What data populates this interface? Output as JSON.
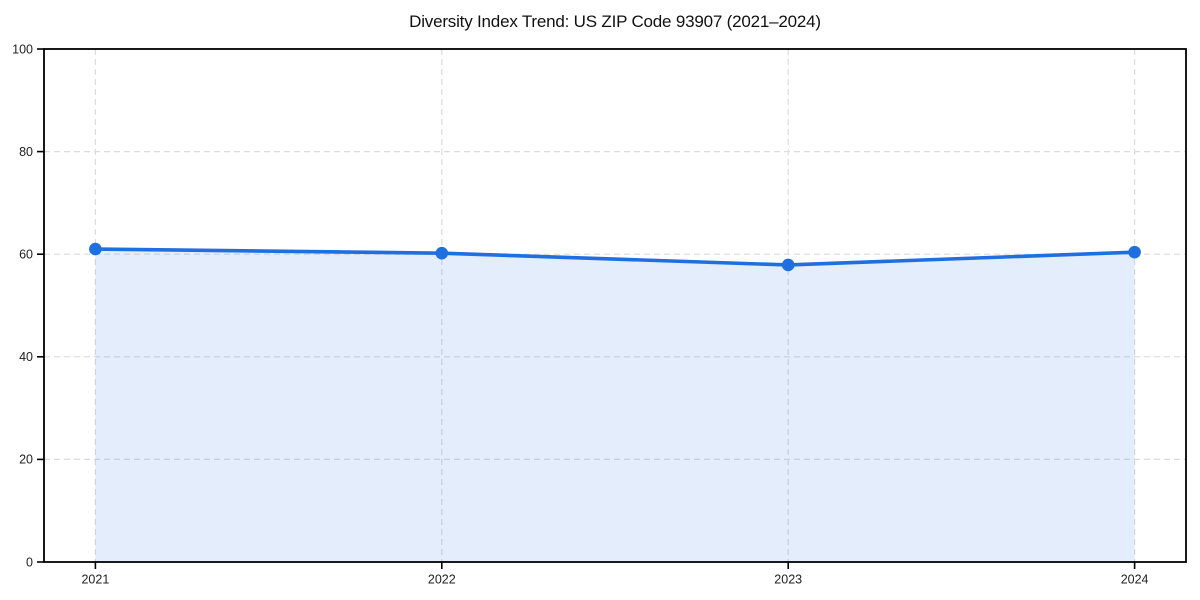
{
  "chart_data": {
    "type": "area",
    "title": "Diversity Index Trend: US ZIP Code 93907 (2021–2024)",
    "categories": [
      "2021",
      "2022",
      "2023",
      "2024"
    ],
    "series": [
      {
        "name": "Diversity Index",
        "values": [
          61.0,
          60.2,
          57.9,
          60.4
        ]
      }
    ],
    "xlabel": "",
    "ylabel": "",
    "ylim": [
      0,
      100
    ],
    "yticks": [
      0,
      20,
      40,
      60,
      80,
      100
    ],
    "grid": true,
    "grid_style": "dashed",
    "legend_position": "none",
    "colors": {
      "line": "#1f6fe0",
      "marker": "#1f6fe0",
      "fill": "#1f6fe0",
      "fill_opacity": 0.12,
      "grid": "#dcdcdc",
      "spine": "#000000",
      "tick_label": "#222222",
      "background": "#ffffff"
    }
  }
}
